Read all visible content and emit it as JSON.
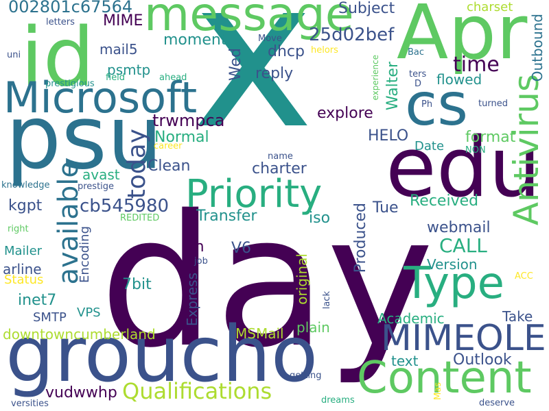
{
  "colors": {
    "c1": "#440154",
    "c2": "#3b528b",
    "c3": "#2c728e",
    "c4": "#21918c",
    "c5": "#28ae80",
    "c6": "#5ec962",
    "c7": "#addc30",
    "c8": "#fde725"
  },
  "words": [
    {
      "text": "day",
      "color": "c1"
    },
    {
      "text": "x",
      "color": "c4"
    },
    {
      "text": "edu",
      "color": "c1"
    },
    {
      "text": "groucho",
      "color": "c2"
    },
    {
      "text": "psu",
      "color": "c3"
    },
    {
      "text": "Apr",
      "color": "c6"
    },
    {
      "text": "id",
      "color": "c6"
    },
    {
      "text": "message",
      "color": "c6"
    },
    {
      "text": "cs",
      "color": "c3"
    },
    {
      "text": "Microsoft",
      "color": "c3"
    },
    {
      "text": "Content",
      "color": "c6"
    },
    {
      "text": "Antivirus",
      "color": "c6"
    },
    {
      "text": "Type",
      "color": "c5"
    },
    {
      "text": "MIMEOLE",
      "color": "c2"
    },
    {
      "text": "Priority",
      "color": "c5"
    },
    {
      "text": "available",
      "color": "c3"
    },
    {
      "text": "today",
      "color": "c2"
    },
    {
      "text": "Qualifications",
      "color": "c7"
    },
    {
      "text": "time",
      "color": "c1"
    },
    {
      "text": "25d02bef",
      "color": "c2"
    },
    {
      "text": "cb545980",
      "color": "c2"
    },
    {
      "text": "002801c67564",
      "color": "c3"
    },
    {
      "text": "CALL",
      "color": "c5"
    },
    {
      "text": "trwmpca",
      "color": "c1"
    },
    {
      "text": "Walter",
      "color": "c5"
    },
    {
      "text": "Produced",
      "color": "c2"
    },
    {
      "text": "Express",
      "color": "c2"
    },
    {
      "text": "original",
      "color": "c7"
    },
    {
      "text": "Encoding",
      "color": "c2"
    },
    {
      "text": "downtowncumberland",
      "color": "c7"
    },
    {
      "text": "Received",
      "color": "c5"
    },
    {
      "text": "vudwwhp",
      "color": "c1"
    },
    {
      "text": "webmail",
      "color": "c2"
    },
    {
      "text": "explore",
      "color": "c1"
    },
    {
      "text": "Outbound",
      "color": "c3"
    },
    {
      "text": "MIME",
      "color": "c1"
    },
    {
      "text": "Wed",
      "color": "c2"
    },
    {
      "text": "charter",
      "color": "c2"
    },
    {
      "text": "Transfer",
      "color": "c4"
    },
    {
      "text": "Outlook",
      "color": "c2"
    },
    {
      "text": "Academic",
      "color": "c5"
    },
    {
      "text": "Subject",
      "color": "c2"
    },
    {
      "text": "reply",
      "color": "c2"
    },
    {
      "text": "HELO",
      "color": "c2"
    },
    {
      "text": "Normal",
      "color": "c5"
    },
    {
      "text": "Clean",
      "color": "c2"
    },
    {
      "text": "kgpt",
      "color": "c2"
    },
    {
      "text": "dhcp",
      "color": "c2"
    },
    {
      "text": "mail5",
      "color": "c2"
    },
    {
      "text": "psmtp",
      "color": "c4"
    },
    {
      "text": "moment",
      "color": "c4"
    },
    {
      "text": "flowed",
      "color": "c4"
    },
    {
      "text": "format",
      "color": "c6"
    },
    {
      "text": "Date",
      "color": "c4"
    },
    {
      "text": "iso",
      "color": "c4"
    },
    {
      "text": "Tue",
      "color": "c2"
    },
    {
      "text": "tn",
      "color": "c1"
    },
    {
      "text": "V6",
      "color": "c2"
    },
    {
      "text": "avast",
      "color": "c5"
    },
    {
      "text": "Version",
      "color": "c4"
    },
    {
      "text": "Take",
      "color": "c2"
    },
    {
      "text": "plain",
      "color": "c6"
    },
    {
      "text": "text",
      "color": "c4"
    },
    {
      "text": "SMTP",
      "color": "c2"
    },
    {
      "text": "VPS",
      "color": "c4"
    },
    {
      "text": "inet7",
      "color": "c4"
    },
    {
      "text": "7bit",
      "color": "c4"
    },
    {
      "text": "Mailer",
      "color": "c4"
    },
    {
      "text": "arline",
      "color": "c2"
    },
    {
      "text": "Status",
      "color": "c8"
    },
    {
      "text": "MSMail",
      "color": "c7"
    },
    {
      "text": "charset",
      "color": "c7"
    },
    {
      "text": "letters",
      "color": "c2"
    },
    {
      "text": "uni",
      "color": "c2"
    },
    {
      "text": "prestigious",
      "color": "c4"
    },
    {
      "text": "field",
      "color": "c5"
    },
    {
      "text": "ahead",
      "color": "c5"
    },
    {
      "text": "Move",
      "color": "c2"
    },
    {
      "text": "helors",
      "color": "c8"
    },
    {
      "text": "Bac",
      "color": "c3"
    },
    {
      "text": "experience",
      "color": "c6"
    },
    {
      "text": "ters",
      "color": "c2"
    },
    {
      "text": "D",
      "color": "c2"
    },
    {
      "text": "Ph",
      "color": "c2"
    },
    {
      "text": "turned",
      "color": "c2"
    },
    {
      "text": "career",
      "color": "c8"
    },
    {
      "text": "NON",
      "color": "c5"
    },
    {
      "text": "name",
      "color": "c2"
    },
    {
      "text": "knowledge",
      "color": "c3"
    },
    {
      "text": "prestige",
      "color": "c2"
    },
    {
      "text": "right",
      "color": "c6"
    },
    {
      "text": "REDITED",
      "color": "c6"
    },
    {
      "text": "job",
      "color": "c2"
    },
    {
      "text": "lack",
      "color": "c2"
    },
    {
      "text": "ACC",
      "color": "c8"
    },
    {
      "text": "getting",
      "color": "c2"
    },
    {
      "text": "dreams",
      "color": "c5"
    },
    {
      "text": "Mas",
      "color": "c8"
    },
    {
      "text": "versities",
      "color": "c2"
    },
    {
      "text": "deserve",
      "color": "c2"
    }
  ]
}
